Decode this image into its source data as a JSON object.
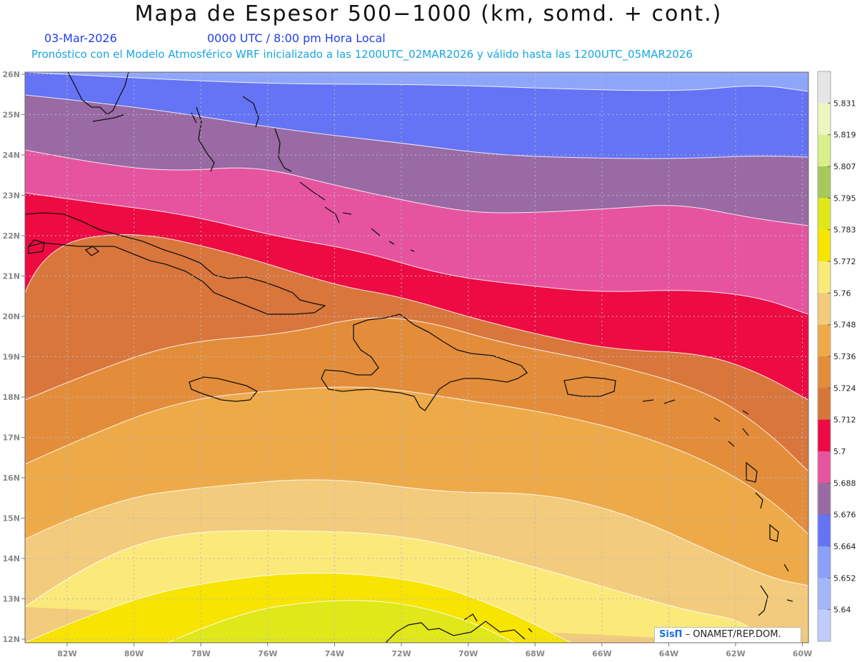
{
  "title": "Mapa de Espesor 500−1000 (km, somd. + cont.)",
  "date": "03-Mar-2026",
  "time": "0000 UTC / 8:00 pm Hora Local",
  "forecast": "Pronostico con el Modelo Atmosferico WRF inicializado a las 1200UTC_02MAR2026 y valido hasta las  1200UTC_05MAR2026",
  "forecast_display": "Pronóstico con el Modelo Atmosférico WRF inicializado a las 1200UTC_02MAR2026 y válido hasta las  1200UTC_05MAR2026",
  "credit_logo": "SisΠ",
  "credit_text": "– ONAMET/REP.DOM.",
  "map": {
    "lon_labels": [
      "82W",
      "80W",
      "78W",
      "76W",
      "74W",
      "72W",
      "70W",
      "68W",
      "66W",
      "64W",
      "62W",
      "60W"
    ],
    "lat_labels": [
      "26N",
      "25N",
      "24N",
      "23N",
      "22N",
      "21N",
      "20N",
      "19N",
      "18N",
      "17N",
      "16N",
      "15N",
      "14N",
      "13N",
      "12N"
    ],
    "lon_values": [
      -82,
      -80,
      -78,
      -76,
      -74,
      -72,
      -70,
      -68,
      -66,
      -64,
      -62,
      -60
    ],
    "lat_values": [
      26,
      25,
      24,
      23,
      22,
      21,
      20,
      19,
      18,
      17,
      16,
      15,
      14,
      13,
      12
    ]
  },
  "colorbar": {
    "labels": [
      "5.831",
      "5.819",
      "5.807",
      "5.795",
      "5.783",
      "5.772",
      "5.76",
      "5.748",
      "5.736",
      "5.724",
      "5.712",
      "5.7",
      "5.688",
      "5.676",
      "5.664",
      "5.652",
      "5.64"
    ],
    "colors": [
      "#e6e6e6",
      "#eef6c0",
      "#d8ef8a",
      "#a6c95c",
      "#e0e81a",
      "#f7e400",
      "#fbe97a",
      "#f3cb7c",
      "#eeaa48",
      "#e38d3a",
      "#d9763c",
      "#ee0a42",
      "#e654a0",
      "#996aa4",
      "#6474f4",
      "#8ba0f8",
      "#a4b6fa",
      "#bfcdfc"
    ]
  },
  "bands": {
    "colors": [
      "#8ea6fa",
      "#6474f4",
      "#996aa4",
      "#e654a0",
      "#ee0a42",
      "#d9763c",
      "#e38d3a",
      "#eeaa48",
      "#f3cb7c",
      "#fbe97a",
      "#f7e400",
      "#e0e81a"
    ]
  }
}
